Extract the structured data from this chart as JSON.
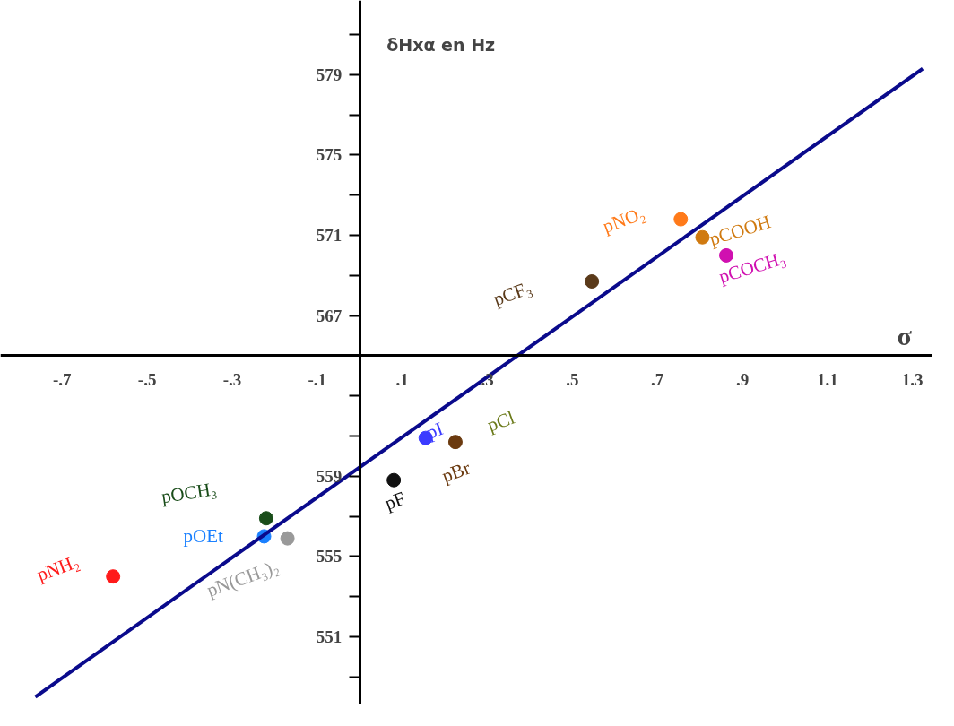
{
  "chart_data": {
    "type": "scatter",
    "xlabel": "σ",
    "ylabel": "δHxα  en Hz",
    "xlim": [
      -0.845,
      1.348
    ],
    "ylim": [
      547.6,
      582.7
    ],
    "xticks": [
      {
        "value": -0.7,
        "label": "-.7"
      },
      {
        "value": -0.5,
        "label": "-.5"
      },
      {
        "value": -0.3,
        "label": "-.3"
      },
      {
        "value": -0.1,
        "label": "-.1"
      },
      {
        "value": 0.1,
        "label": ".1"
      },
      {
        "value": 0.3,
        "label": ".3"
      },
      {
        "value": 0.5,
        "label": ".5"
      },
      {
        "value": 0.7,
        "label": ".7"
      },
      {
        "value": 0.9,
        "label": ".9"
      },
      {
        "value": 1.1,
        "label": "1.1"
      },
      {
        "value": 1.3,
        "label": "1.3"
      }
    ],
    "yticks": [
      {
        "value": 549,
        "label": null
      },
      551,
      {
        "value": 553,
        "label": null
      },
      555,
      {
        "value": 557,
        "label": null
      },
      559,
      {
        "value": 561,
        "label": null
      },
      {
        "value": 563,
        "label": null
      },
      {
        "value": 565,
        "label": null
      },
      567,
      {
        "value": 569,
        "label": null
      },
      571,
      {
        "value": 573,
        "label": null
      },
      575,
      {
        "value": 577,
        "label": null
      },
      579,
      {
        "value": 581,
        "label": null
      }
    ],
    "marker": "circle",
    "annotations": [
      "pCl"
    ],
    "series": [
      {
        "name": "pNH₂",
        "color": "#ff1a1a",
        "x": [
          -0.58
        ],
        "values": [
          554.0
        ]
      },
      {
        "name": "pOCH₃",
        "color": "#1a4d1a",
        "x": [
          -0.22
        ],
        "values": [
          556.9
        ]
      },
      {
        "name": "pOEt",
        "color": "#1a80ff",
        "x": [
          -0.225
        ],
        "values": [
          556.0
        ]
      },
      {
        "name": "pN(CH₃)₂",
        "color": "#999999",
        "x": [
          -0.17
        ],
        "values": [
          555.9
        ]
      },
      {
        "name": "pF",
        "color": "#111111",
        "x": [
          0.08
        ],
        "values": [
          558.8
        ]
      },
      {
        "name": "pI",
        "color": "#3b3bff",
        "x": [
          0.155
        ],
        "values": [
          560.9
        ]
      },
      {
        "name": "pBr",
        "color": "#6b3a0f",
        "x": [
          0.225
        ],
        "values": [
          560.7
        ]
      },
      {
        "name": "pCF₃",
        "color": "#5a3a1a",
        "x": [
          0.546
        ],
        "values": [
          568.7
        ]
      },
      {
        "name": "pNO₂",
        "color": "#ff7a1a",
        "x": [
          0.755
        ],
        "values": [
          571.8
        ]
      },
      {
        "name": "pCOOH",
        "color": "#d07a10",
        "x": [
          0.806
        ],
        "values": [
          570.9
        ]
      },
      {
        "name": "pCOCH₃",
        "color": "#d010b0",
        "x": [
          0.862
        ],
        "values": [
          570.0
        ]
      },
      {
        "type": "line",
        "color": "#0a0a8c",
        "x": [
          -0.763,
          1.324
        ],
        "values": [
          548.0,
          579.3
        ],
        "marker": "none"
      }
    ]
  }
}
